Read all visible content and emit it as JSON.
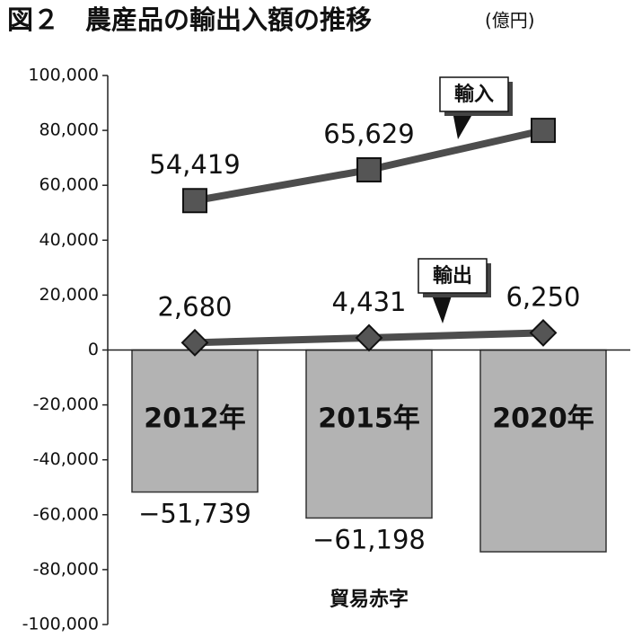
{
  "chart_data": {
    "type": "combo",
    "title": "図２　農産品の輸出入額の推移",
    "unit": "(億円)",
    "categories": [
      "2012年",
      "2015年",
      "2020年"
    ],
    "ylim": [
      -100000,
      100000
    ],
    "yticks": [
      {
        "value": -100000,
        "label": "-100,000"
      },
      {
        "value": -80000,
        "label": "-80,000"
      },
      {
        "value": -60000,
        "label": "-60,000"
      },
      {
        "value": -40000,
        "label": "-40,000"
      },
      {
        "value": -20000,
        "label": "-20,000"
      },
      0,
      {
        "value": 20000,
        "label": "20,000"
      },
      {
        "value": 40000,
        "label": "40,000"
      },
      {
        "value": 60000,
        "label": "60,000"
      },
      {
        "value": 80000,
        "label": "80,000"
      },
      {
        "value": 100000,
        "label": "100,000"
      }
    ],
    "series": [
      {
        "name": "貿易赤字",
        "type": "bar",
        "color": "#b3b3b3",
        "values": [
          -51739,
          -61198,
          -73500
        ],
        "value_labels": [
          "−51,739",
          "−61,198",
          null
        ]
      },
      {
        "name": "輸入",
        "type": "line",
        "marker": "square",
        "color": "#4d4d4d",
        "values": [
          54419,
          65629,
          80000
        ],
        "value_labels": [
          "54,419",
          "65,629",
          null
        ]
      },
      {
        "name": "輸出",
        "type": "line",
        "marker": "diamond",
        "color": "#4d4d4d",
        "values": [
          2680,
          4431,
          6250
        ],
        "value_labels": [
          "2,680",
          "4,431",
          "6,250"
        ]
      }
    ]
  }
}
